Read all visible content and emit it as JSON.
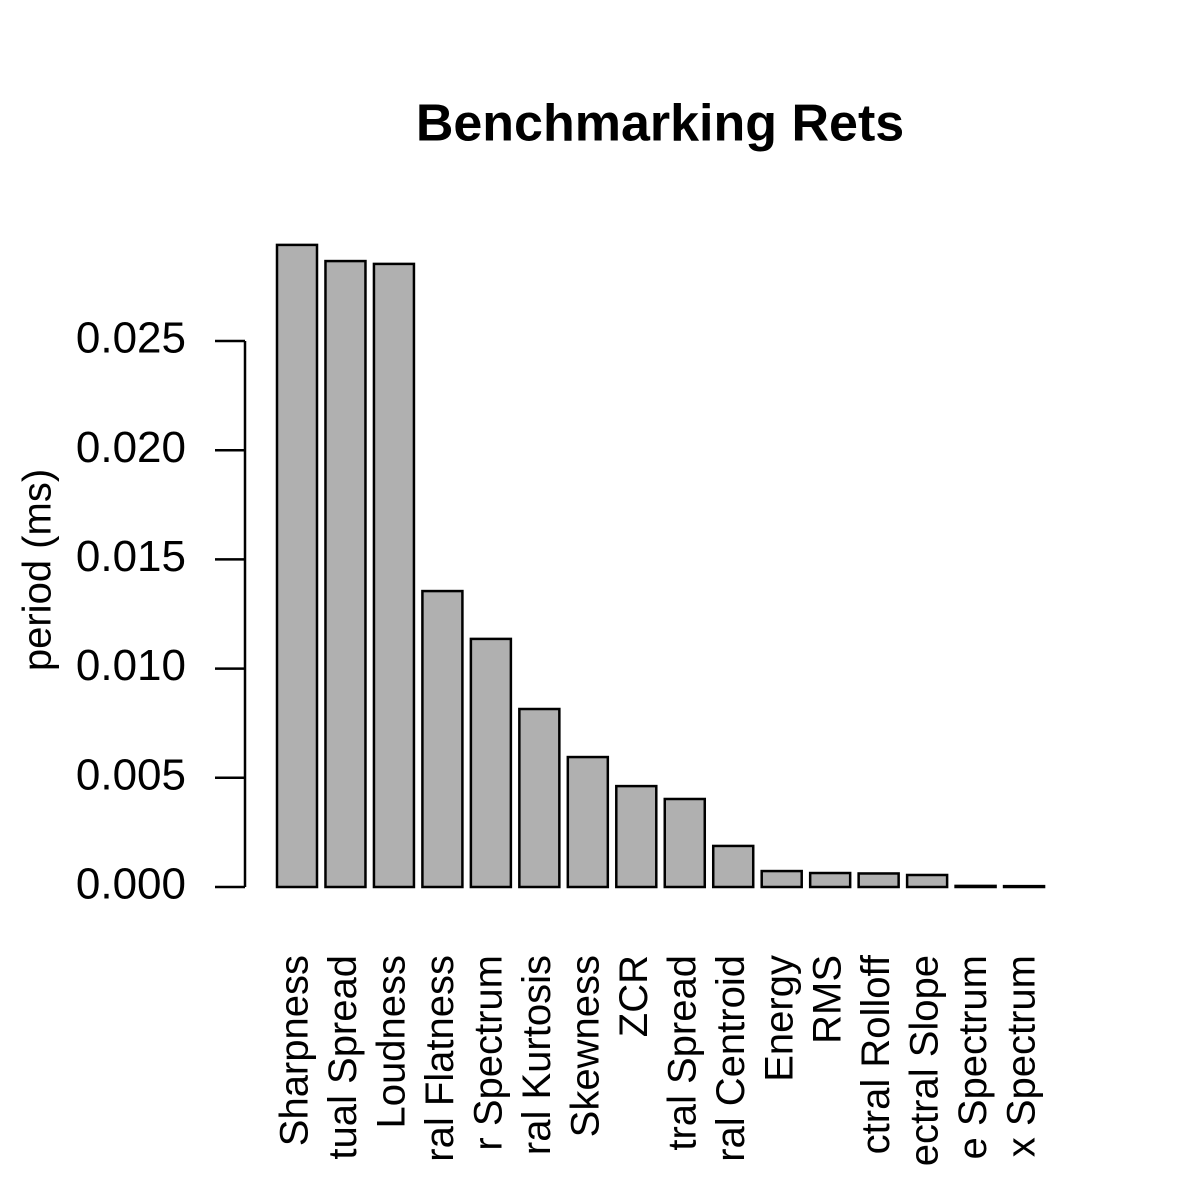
{
  "chart_data": {
    "type": "bar",
    "title": "Benchmarking Rets",
    "y_label": "period (ms)",
    "categories": [
      "Sharpness",
      "tual Spread",
      "Loudness",
      "ral Flatness",
      "r Spectrum",
      "ral Kurtosis",
      "Skewness",
      "ZCR",
      "tral Spread",
      "ral Centroid",
      "Energy",
      "RMS",
      "ctral Rolloff",
      "ectral Slope",
      "e Spectrum",
      "x Spectrum"
    ],
    "values": [
      0.0294,
      0.02866,
      0.02853,
      0.01355,
      0.01136,
      0.00815,
      0.00595,
      0.00462,
      0.00403,
      0.00188,
      0.00073,
      0.00064,
      0.00062,
      0.00055,
      5e-05,
      4e-05
    ],
    "color": "#b0b0b0",
    "ylim": [
      0,
      0.0306
    ],
    "yticks": [
      {
        "value": 0,
        "label": "0.000"
      },
      0.005,
      {
        "value": 0.01,
        "label": "0.010"
      },
      0.015,
      {
        "value": 0.02,
        "label": "0.020"
      },
      0.025
    ],
    "grid": false
  }
}
